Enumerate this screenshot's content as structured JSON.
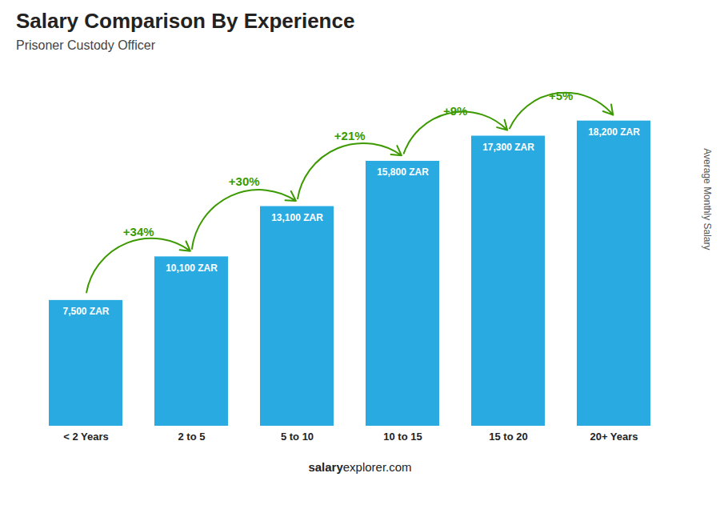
{
  "chart_data": {
    "type": "bar",
    "title": "Salary Comparison By Experience",
    "subtitle": "Prisoner Custody Officer",
    "ylabel": "Average Monthly Salary",
    "caption": [
      "salary",
      "explorer.com"
    ],
    "categories": [
      "< 2 Years",
      "2 to 5",
      "5 to 10",
      "10 to 15",
      "15 to 20",
      "20+ Years"
    ],
    "values": [
      7500,
      10100,
      13100,
      15800,
      17300,
      18200
    ],
    "value_labels": [
      "7,500 ZAR",
      "10,100 ZAR",
      "13,100 ZAR",
      "15,800 ZAR",
      "17,300 ZAR",
      "18,200 ZAR"
    ],
    "data_labels": true,
    "color": "#29abe2",
    "ylim": [
      0,
      21000
    ],
    "tick_labels": "x",
    "grid": false,
    "annotations": [
      {
        "from": "< 2 Years",
        "to": "2 to 5",
        "text": "+34%"
      },
      {
        "from": "2 to 5",
        "to": "5 to 10",
        "text": "+30%"
      },
      {
        "from": "5 to 10",
        "to": "10 to 15",
        "text": "+21%"
      },
      {
        "from": "10 to 15",
        "to": "15 to 20",
        "text": "+9%"
      },
      {
        "from": "15 to 20",
        "to": "20+ Years",
        "text": "+5%"
      }
    ]
  }
}
